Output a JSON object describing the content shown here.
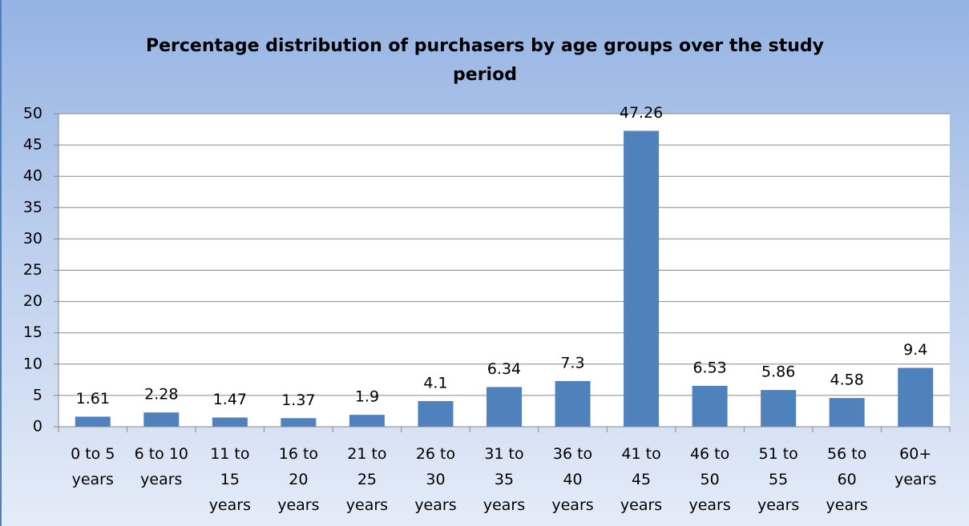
{
  "chart_data": {
    "type": "bar",
    "title": "Percentage distribution of purchasers by age groups over the study period",
    "categories": [
      "0 to 5 years",
      "6 to 10 years",
      "11 to 15 years",
      "16 to 20 years",
      "21 to 25 years",
      "26 to 30 years",
      "31 to 35 years",
      "36 to 40 years",
      "41 to 45 years",
      "46 to 50 years",
      "51 to 55 years",
      "56 to 60 years",
      "60+ years"
    ],
    "values": [
      1.61,
      2.28,
      1.47,
      1.37,
      1.9,
      4.1,
      6.34,
      7.3,
      47.26,
      6.53,
      5.86,
      4.58,
      9.4
    ],
    "color": "#4f81bd",
    "ylim": [
      0,
      50
    ],
    "yticks": [
      0,
      5,
      10,
      15,
      20,
      25,
      30,
      35,
      40,
      45,
      50
    ],
    "grid": true
  }
}
